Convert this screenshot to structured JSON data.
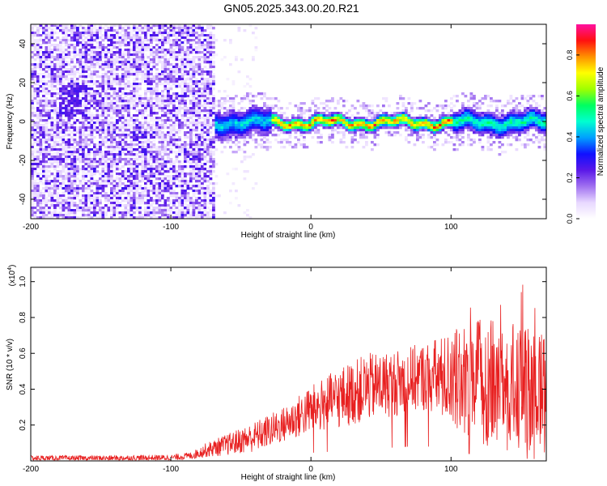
{
  "title": "GN05.2025.343.00.20.R21",
  "chart_data": [
    {
      "type": "heatmap",
      "title": "GN05.2025.343.00.20.R21",
      "xlabel": "Height of straight line (km)",
      "ylabel": "Frequency (Hz)",
      "xlim": [
        -200,
        168
      ],
      "ylim": [
        -50,
        50
      ],
      "xticks": [
        "-200",
        "-100",
        "0",
        "100"
      ],
      "xtick_values": [
        -200,
        -100,
        0,
        100
      ],
      "yticks": [
        "-40",
        "-20",
        "0",
        "20",
        "40"
      ],
      "ytick_values": [
        -40,
        -20,
        0,
        20,
        40
      ],
      "colorbar": {
        "label": "Normalized spectral amplitude",
        "range": [
          0,
          0.95
        ],
        "ticks": [
          "0.0",
          "0.2",
          "0.4",
          "0.6",
          "0.8"
        ],
        "tick_values": [
          0.0,
          0.2,
          0.4,
          0.6,
          0.8
        ],
        "colormap": [
          "#ffffff",
          "#e8d8ff",
          "#a070f0",
          "#5a18e8",
          "#1010ff",
          "#00a0ff",
          "#00ffd0",
          "#00ff60",
          "#a0ff00",
          "#ffff00",
          "#ff9000",
          "#ff1010",
          "#ff10a0"
        ]
      },
      "regions": [
        {
          "name": "noise",
          "x_range": [
            -200,
            -70
          ],
          "description": "scattered low-amplitude speckle"
        },
        {
          "name": "signal-band",
          "x_range": [
            -70,
            168
          ],
          "center_freq_hz": 0,
          "peak_amplitude": 0.85
        }
      ]
    },
    {
      "type": "line",
      "xlabel": "Height of straight line (km)",
      "ylabel": "SNR (10 * v/v)",
      "y_multiplier": "(x10",
      "y_multiplier_exp": "4",
      "y_multiplier_close": ")",
      "xlim": [
        -200,
        168
      ],
      "ylim": [
        0,
        1.08
      ],
      "xticks": [
        "-200",
        "-100",
        "0",
        "100"
      ],
      "xtick_values": [
        -200,
        -100,
        0,
        100
      ],
      "yticks": [
        "0.2",
        "0.4",
        "0.6",
        "0.8",
        "1.0"
      ],
      "ytick_values": [
        0.2,
        0.4,
        0.6,
        0.8,
        1.0
      ],
      "color": "#e82020",
      "envelope": {
        "x": [
          -200,
          -150,
          -100,
          -85,
          -75,
          -60,
          -40,
          -20,
          0,
          20,
          40,
          60,
          80,
          100,
          120,
          140,
          168
        ],
        "lower": [
          0.0,
          0.0,
          0.0,
          0.01,
          0.02,
          0.03,
          0.05,
          0.1,
          0.15,
          0.18,
          0.22,
          0.25,
          0.28,
          0.2,
          0.1,
          0.05,
          0.03
        ],
        "upper": [
          0.03,
          0.03,
          0.035,
          0.05,
          0.1,
          0.15,
          0.22,
          0.3,
          0.42,
          0.52,
          0.6,
          0.62,
          0.66,
          0.72,
          0.8,
          0.78,
          0.7
        ]
      }
    }
  ]
}
